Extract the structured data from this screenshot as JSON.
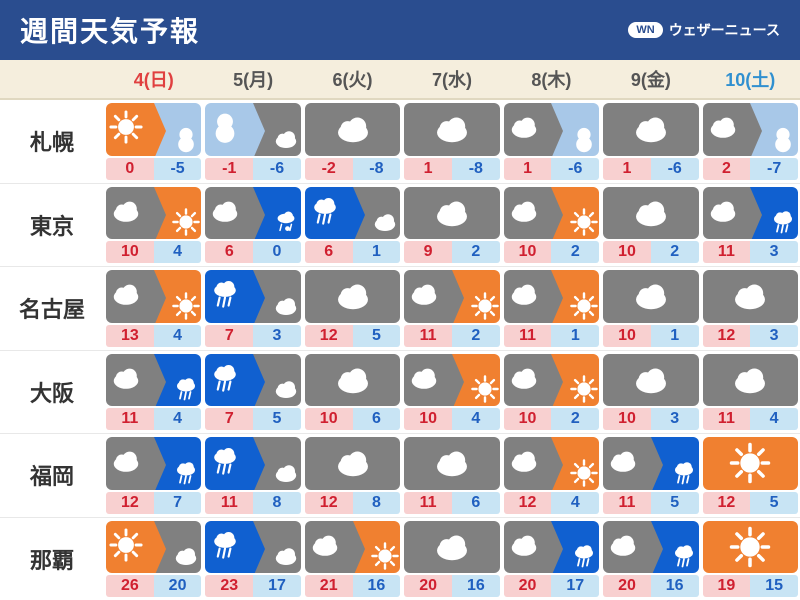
{
  "title": "週間天気予報",
  "brand": {
    "badge": "WN",
    "text": "ウェザーニュース"
  },
  "colors": {
    "header_bg": "#2a4d8f",
    "days_bg": "#f5eedd",
    "sunny": "#f08030",
    "cloudy": "#808080",
    "rain": "#1060d0",
    "snow": "#a8c8e8",
    "day_sunday": "#e04040",
    "day_weekday": "#555555",
    "day_saturday": "#3090d0"
  },
  "days": [
    {
      "label": "4(日)",
      "color": "#e04040"
    },
    {
      "label": "5(月)",
      "color": "#555555"
    },
    {
      "label": "6(火)",
      "color": "#555555"
    },
    {
      "label": "7(水)",
      "color": "#555555"
    },
    {
      "label": "8(木)",
      "color": "#555555"
    },
    {
      "label": "9(金)",
      "color": "#555555"
    },
    {
      "label": "10(土)",
      "color": "#3090d0"
    }
  ],
  "cities": [
    {
      "name": "札幌",
      "forecasts": [
        {
          "icon": [
            "sunny",
            "snow"
          ],
          "hi": 0,
          "lo": -5
        },
        {
          "icon": [
            "snow",
            "cloudy"
          ],
          "hi": -1,
          "lo": -6
        },
        {
          "icon": [
            "cloudy"
          ],
          "hi": -2,
          "lo": -8
        },
        {
          "icon": [
            "cloudy"
          ],
          "hi": 1,
          "lo": -8
        },
        {
          "icon": [
            "cloudy",
            "snow"
          ],
          "hi": 1,
          "lo": -6
        },
        {
          "icon": [
            "cloudy"
          ],
          "hi": 1,
          "lo": -6
        },
        {
          "icon": [
            "cloudy",
            "snow"
          ],
          "hi": 2,
          "lo": -7
        }
      ]
    },
    {
      "name": "東京",
      "forecasts": [
        {
          "icon": [
            "cloudy",
            "sunny"
          ],
          "hi": 10,
          "lo": 4
        },
        {
          "icon": [
            "cloudy",
            "sleet"
          ],
          "hi": 6,
          "lo": 0
        },
        {
          "icon": [
            "rain",
            "cloudy"
          ],
          "hi": 6,
          "lo": 1
        },
        {
          "icon": [
            "cloudy"
          ],
          "hi": 9,
          "lo": 2
        },
        {
          "icon": [
            "cloudy",
            "sunny"
          ],
          "hi": 10,
          "lo": 2
        },
        {
          "icon": [
            "cloudy"
          ],
          "hi": 10,
          "lo": 2
        },
        {
          "icon": [
            "cloudy",
            "rain"
          ],
          "hi": 11,
          "lo": 3
        }
      ]
    },
    {
      "name": "名古屋",
      "forecasts": [
        {
          "icon": [
            "cloudy",
            "sunny"
          ],
          "hi": 13,
          "lo": 4
        },
        {
          "icon": [
            "rain",
            "cloudy"
          ],
          "hi": 7,
          "lo": 3
        },
        {
          "icon": [
            "cloudy"
          ],
          "hi": 12,
          "lo": 5
        },
        {
          "icon": [
            "cloudy",
            "sunny"
          ],
          "hi": 11,
          "lo": 2
        },
        {
          "icon": [
            "cloudy",
            "sunny"
          ],
          "hi": 11,
          "lo": 1
        },
        {
          "icon": [
            "cloudy"
          ],
          "hi": 10,
          "lo": 1
        },
        {
          "icon": [
            "cloudy"
          ],
          "hi": 12,
          "lo": 3
        }
      ]
    },
    {
      "name": "大阪",
      "forecasts": [
        {
          "icon": [
            "cloudy",
            "rain"
          ],
          "hi": 11,
          "lo": 4
        },
        {
          "icon": [
            "rain",
            "cloudy"
          ],
          "hi": 7,
          "lo": 5
        },
        {
          "icon": [
            "cloudy"
          ],
          "hi": 10,
          "lo": 6
        },
        {
          "icon": [
            "cloudy",
            "sunny"
          ],
          "hi": 10,
          "lo": 4
        },
        {
          "icon": [
            "cloudy",
            "sunny"
          ],
          "hi": 10,
          "lo": 2
        },
        {
          "icon": [
            "cloudy"
          ],
          "hi": 10,
          "lo": 3
        },
        {
          "icon": [
            "cloudy"
          ],
          "hi": 11,
          "lo": 4
        }
      ]
    },
    {
      "name": "福岡",
      "forecasts": [
        {
          "icon": [
            "cloudy",
            "rain"
          ],
          "hi": 12,
          "lo": 7
        },
        {
          "icon": [
            "rain",
            "cloudy"
          ],
          "hi": 11,
          "lo": 8
        },
        {
          "icon": [
            "cloudy"
          ],
          "hi": 12,
          "lo": 8
        },
        {
          "icon": [
            "cloudy"
          ],
          "hi": 11,
          "lo": 6
        },
        {
          "icon": [
            "cloudy",
            "sunny"
          ],
          "hi": 12,
          "lo": 4
        },
        {
          "icon": [
            "cloudy",
            "rain"
          ],
          "hi": 11,
          "lo": 5
        },
        {
          "icon": [
            "sunny"
          ],
          "hi": 12,
          "lo": 5
        }
      ]
    },
    {
      "name": "那覇",
      "forecasts": [
        {
          "icon": [
            "sunny",
            "cloudy"
          ],
          "hi": 26,
          "lo": 20
        },
        {
          "icon": [
            "rain",
            "cloudy"
          ],
          "hi": 23,
          "lo": 17
        },
        {
          "icon": [
            "cloudy",
            "sunny"
          ],
          "hi": 21,
          "lo": 16
        },
        {
          "icon": [
            "cloudy"
          ],
          "hi": 20,
          "lo": 16
        },
        {
          "icon": [
            "cloudy",
            "rain"
          ],
          "hi": 20,
          "lo": 17
        },
        {
          "icon": [
            "cloudy",
            "rain"
          ],
          "hi": 20,
          "lo": 16
        },
        {
          "icon": [
            "sunny"
          ],
          "hi": 19,
          "lo": 15
        }
      ]
    }
  ]
}
